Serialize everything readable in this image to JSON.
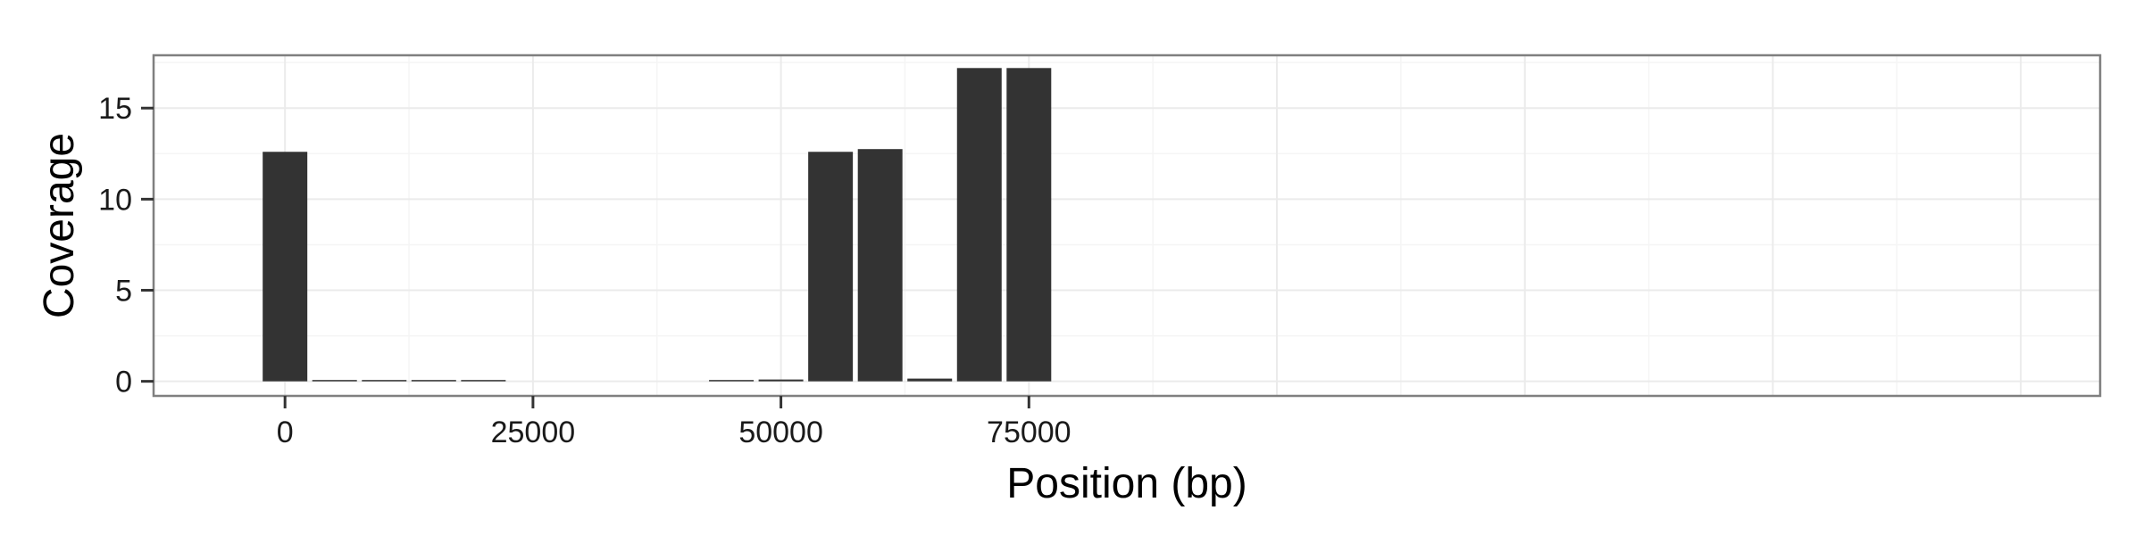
{
  "chart_data": {
    "type": "bar",
    "title": "",
    "xlabel": "Position (bp)",
    "ylabel": "Coverage",
    "xlim": [
      -13250,
      183000
    ],
    "ylim": [
      -0.8,
      17.9
    ],
    "x_ticks": [
      0,
      25000,
      50000,
      75000
    ],
    "x_tick_labels": [
      "0",
      "25000",
      "50000",
      "75000"
    ],
    "y_ticks": [
      0,
      5,
      10,
      15
    ],
    "y_tick_labels": [
      "0",
      "5",
      "10",
      "15"
    ],
    "bin_width": 5000,
    "bar_fill_fraction": 0.9,
    "x": [
      0,
      5000,
      10000,
      15000,
      20000,
      45000,
      50000,
      55000,
      60000,
      65000,
      70000,
      75000
    ],
    "values": [
      12.6,
      0.05,
      0.05,
      0.05,
      0.05,
      0.05,
      0.1,
      12.6,
      12.75,
      0.15,
      17.2,
      17.2
    ],
    "grid": true,
    "colors": {
      "bar": "#333333",
      "panel_border": "#7f7f7f",
      "grid_major": "#ebebeb",
      "grid_minor": "#f5f5f5",
      "tick": "#333333",
      "background": "#ffffff"
    }
  }
}
